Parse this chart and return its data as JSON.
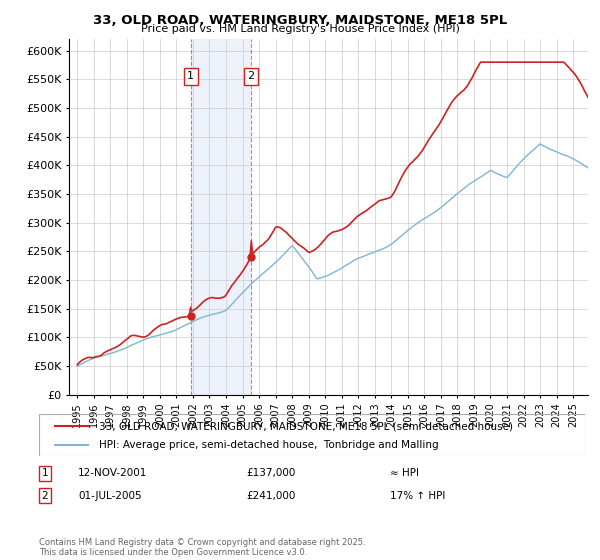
{
  "title": "33, OLD ROAD, WATERINGBURY, MAIDSTONE, ME18 5PL",
  "subtitle": "Price paid vs. HM Land Registry's House Price Index (HPI)",
  "ylim": [
    0,
    620000
  ],
  "yticks": [
    0,
    50000,
    100000,
    150000,
    200000,
    250000,
    300000,
    350000,
    400000,
    450000,
    500000,
    550000,
    600000
  ],
  "sale1_date": 2001.87,
  "sale1_price": 137000,
  "sale2_date": 2005.5,
  "sale2_price": 241000,
  "hpi_color": "#7eb5d6",
  "price_color": "#cc2222",
  "background_color": "#ffffff",
  "grid_color": "#cccccc",
  "span_color": "#ccd8ee",
  "legend_label_price": "33, OLD ROAD, WATERINGBURY, MAIDSTONE, ME18 5PL (semi-detached house)",
  "legend_label_hpi": "HPI: Average price, semi-detached house,  Tonbridge and Malling",
  "annotation1_label": "1",
  "annotation1_text": "12-NOV-2001",
  "annotation1_price_text": "£137,000",
  "annotation1_hpi_text": "≈ HPI",
  "annotation2_label": "2",
  "annotation2_text": "01-JUL-2005",
  "annotation2_price_text": "£241,000",
  "annotation2_hpi_text": "17% ↑ HPI",
  "footer": "Contains HM Land Registry data © Crown copyright and database right 2025.\nThis data is licensed under the Open Government Licence v3.0."
}
